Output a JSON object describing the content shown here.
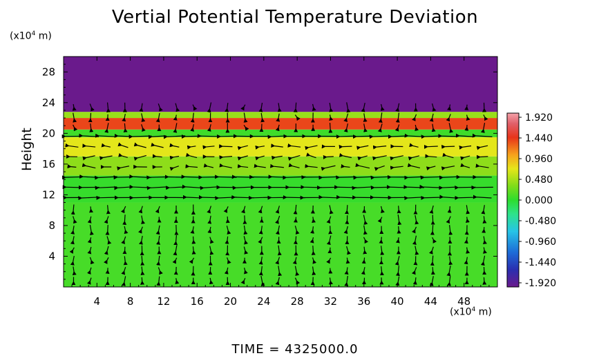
{
  "chart_data": {
    "type": "heatmap",
    "title": "Vertial Potential Temperature Deviation",
    "ylabel": "Height",
    "xunit": "(×10⁴ m)",
    "yunit": "(×10⁴ m)",
    "footer": "TIME = 4325000.0",
    "xlim": [
      0,
      52
    ],
    "ylim": [
      0,
      30
    ],
    "xticks": [
      4,
      8,
      12,
      16,
      20,
      24,
      28,
      32,
      36,
      40,
      44,
      48
    ],
    "yticks": [
      4,
      8,
      12,
      16,
      20,
      24,
      28
    ],
    "colorbar": {
      "labels": [
        "1.920",
        "1.440",
        "0.960",
        "0.480",
        "0.000",
        "-0.480",
        "-0.960",
        "-1.440",
        "-1.920"
      ],
      "min": -1.92,
      "max": 1.92
    },
    "field_bands": [
      {
        "y0": 0,
        "y1": 11,
        "value": 0.15
      },
      {
        "y0": 11,
        "y1": 14.5,
        "value": 0.05
      },
      {
        "y0": 14.5,
        "y1": 17,
        "value": 0.55
      },
      {
        "y0": 17,
        "y1": 19.5,
        "value": 0.95
      },
      {
        "y0": 19.5,
        "y1": 20.5,
        "value": 0.1
      },
      {
        "y0": 20.5,
        "y1": 22,
        "value": 1.4
      },
      {
        "y0": 22,
        "y1": 22.8,
        "value": 0.6
      },
      {
        "y0": 22.8,
        "y1": 30,
        "value": -1.92
      }
    ]
  }
}
